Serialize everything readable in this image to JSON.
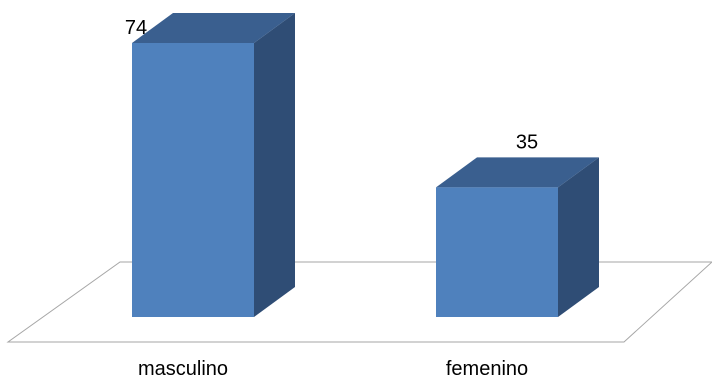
{
  "chart_data": {
    "type": "bar",
    "categories": [
      "masculino",
      "femenino"
    ],
    "values": [
      74,
      35
    ],
    "ylim": [
      0,
      74
    ],
    "grid": false,
    "legend": "none",
    "three_d": true,
    "colors": {
      "front": "#4f81bd",
      "top": "#3a5f8f",
      "side": "#2f4d75",
      "floor_stroke": "#a6a6a6"
    }
  }
}
